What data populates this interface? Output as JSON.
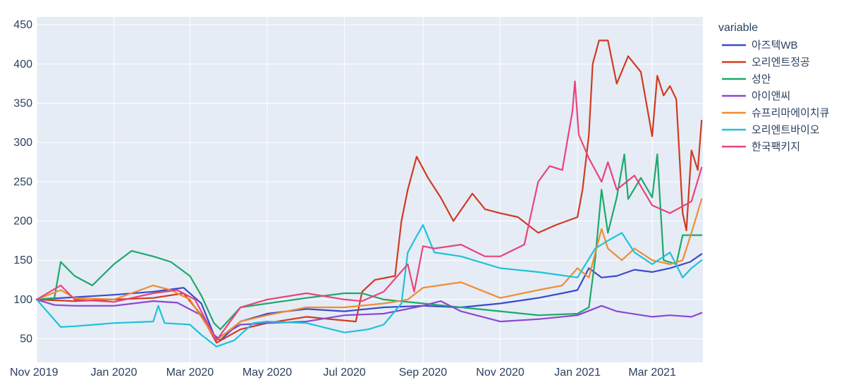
{
  "chart_data": {
    "type": "line",
    "title": "",
    "xlabel": "",
    "ylabel": "",
    "legend_title": "variable",
    "legend_position": "right",
    "grid": true,
    "background": "#e5ecf6",
    "x_ticks": [
      "Nov 2019",
      "Jan 2020",
      "Mar 2020",
      "May 2020",
      "Jul 2020",
      "Sep 2020",
      "Nov 2020",
      "Jan 2021",
      "Mar 2021"
    ],
    "x_range": [
      "2019-11-01",
      "2021-04-10"
    ],
    "y_ticks": [
      50,
      100,
      150,
      200,
      250,
      300,
      350,
      400,
      450
    ],
    "ylim": [
      20,
      460
    ],
    "series": [
      {
        "name": "아즈텍WB",
        "color": "#3b4bc8",
        "points": [
          [
            "2019-11-01",
            100
          ],
          [
            "2019-12-01",
            103
          ],
          [
            "2020-01-01",
            106
          ],
          [
            "2020-02-01",
            110
          ],
          [
            "2020-02-25",
            115
          ],
          [
            "2020-03-10",
            95
          ],
          [
            "2020-03-20",
            55
          ],
          [
            "2020-03-25",
            48
          ],
          [
            "2020-04-10",
            72
          ],
          [
            "2020-05-01",
            82
          ],
          [
            "2020-06-01",
            88
          ],
          [
            "2020-07-01",
            85
          ],
          [
            "2020-08-01",
            90
          ],
          [
            "2020-09-01",
            92
          ],
          [
            "2020-10-01",
            90
          ],
          [
            "2020-11-01",
            95
          ],
          [
            "2020-12-01",
            102
          ],
          [
            "2020-12-20",
            108
          ],
          [
            "2021-01-01",
            112
          ],
          [
            "2021-01-10",
            140
          ],
          [
            "2021-01-20",
            128
          ],
          [
            "2021-02-01",
            130
          ],
          [
            "2021-02-15",
            138
          ],
          [
            "2021-03-01",
            135
          ],
          [
            "2021-03-15",
            140
          ],
          [
            "2021-03-31",
            148
          ],
          [
            "2021-04-09",
            158
          ]
        ]
      },
      {
        "name": "오리엔트정공",
        "color": "#d03b1f",
        "points": [
          [
            "2019-11-01",
            100
          ],
          [
            "2019-12-01",
            98
          ],
          [
            "2020-01-01",
            100
          ],
          [
            "2020-02-01",
            102
          ],
          [
            "2020-02-25",
            108
          ],
          [
            "2020-03-10",
            80
          ],
          [
            "2020-03-22",
            45
          ],
          [
            "2020-04-10",
            62
          ],
          [
            "2020-05-01",
            70
          ],
          [
            "2020-06-01",
            78
          ],
          [
            "2020-06-20",
            75
          ],
          [
            "2020-07-10",
            72
          ],
          [
            "2020-07-15",
            110
          ],
          [
            "2020-07-25",
            125
          ],
          [
            "2020-08-10",
            130
          ],
          [
            "2020-08-15",
            200
          ],
          [
            "2020-08-20",
            240
          ],
          [
            "2020-08-27",
            282
          ],
          [
            "2020-09-05",
            255
          ],
          [
            "2020-09-15",
            230
          ],
          [
            "2020-09-25",
            200
          ],
          [
            "2020-10-10",
            235
          ],
          [
            "2020-10-20",
            215
          ],
          [
            "2020-11-01",
            210
          ],
          [
            "2020-11-15",
            205
          ],
          [
            "2020-12-01",
            185
          ],
          [
            "2020-12-15",
            195
          ],
          [
            "2021-01-01",
            205
          ],
          [
            "2021-01-05",
            240
          ],
          [
            "2021-01-10",
            310
          ],
          [
            "2021-01-13",
            400
          ],
          [
            "2021-01-18",
            430
          ],
          [
            "2021-01-25",
            430
          ],
          [
            "2021-02-01",
            375
          ],
          [
            "2021-02-10",
            410
          ],
          [
            "2021-02-20",
            390
          ],
          [
            "2021-03-01",
            308
          ],
          [
            "2021-03-05",
            385
          ],
          [
            "2021-03-10",
            360
          ],
          [
            "2021-03-15",
            372
          ],
          [
            "2021-03-20",
            355
          ],
          [
            "2021-03-25",
            210
          ],
          [
            "2021-03-28",
            188
          ],
          [
            "2021-04-01",
            290
          ],
          [
            "2021-04-06",
            265
          ],
          [
            "2021-04-09",
            328
          ]
        ]
      },
      {
        "name": "성안",
        "color": "#1ea86a",
        "points": [
          [
            "2019-11-01",
            100
          ],
          [
            "2019-11-15",
            102
          ],
          [
            "2019-11-20",
            148
          ],
          [
            "2019-12-01",
            130
          ],
          [
            "2019-12-15",
            118
          ],
          [
            "2020-01-01",
            145
          ],
          [
            "2020-01-15",
            162
          ],
          [
            "2020-02-01",
            155
          ],
          [
            "2020-02-15",
            148
          ],
          [
            "2020-03-01",
            130
          ],
          [
            "2020-03-10",
            105
          ],
          [
            "2020-03-20",
            70
          ],
          [
            "2020-03-25",
            62
          ],
          [
            "2020-04-10",
            90
          ],
          [
            "2020-05-01",
            95
          ],
          [
            "2020-06-01",
            102
          ],
          [
            "2020-07-01",
            108
          ],
          [
            "2020-07-15",
            108
          ],
          [
            "2020-08-01",
            100
          ],
          [
            "2020-09-01",
            95
          ],
          [
            "2020-10-01",
            90
          ],
          [
            "2020-11-01",
            85
          ],
          [
            "2020-12-01",
            80
          ],
          [
            "2021-01-01",
            82
          ],
          [
            "2021-01-10",
            90
          ],
          [
            "2021-01-15",
            152
          ],
          [
            "2021-01-20",
            240
          ],
          [
            "2021-01-25",
            185
          ],
          [
            "2021-02-01",
            230
          ],
          [
            "2021-02-07",
            285
          ],
          [
            "2021-02-10",
            228
          ],
          [
            "2021-02-20",
            255
          ],
          [
            "2021-03-01",
            230
          ],
          [
            "2021-03-05",
            285
          ],
          [
            "2021-03-10",
            150
          ],
          [
            "2021-03-20",
            145
          ],
          [
            "2021-03-25",
            182
          ],
          [
            "2021-04-09",
            182
          ]
        ]
      },
      {
        "name": "아이앤씨",
        "color": "#8f45d3",
        "points": [
          [
            "2019-11-01",
            100
          ],
          [
            "2019-11-15",
            93
          ],
          [
            "2019-12-01",
            92
          ],
          [
            "2020-01-01",
            92
          ],
          [
            "2020-02-01",
            98
          ],
          [
            "2020-02-20",
            96
          ],
          [
            "2020-03-10",
            80
          ],
          [
            "2020-03-22",
            50
          ],
          [
            "2020-04-10",
            68
          ],
          [
            "2020-05-01",
            70
          ],
          [
            "2020-06-01",
            72
          ],
          [
            "2020-07-01",
            80
          ],
          [
            "2020-08-01",
            82
          ],
          [
            "2020-09-01",
            92
          ],
          [
            "2020-09-15",
            98
          ],
          [
            "2020-10-01",
            85
          ],
          [
            "2020-11-01",
            72
          ],
          [
            "2020-12-01",
            75
          ],
          [
            "2021-01-01",
            80
          ],
          [
            "2021-01-20",
            92
          ],
          [
            "2021-02-01",
            85
          ],
          [
            "2021-03-01",
            78
          ],
          [
            "2021-03-15",
            80
          ],
          [
            "2021-04-01",
            78
          ],
          [
            "2021-04-09",
            83
          ]
        ]
      },
      {
        "name": "슈프리마에이치큐",
        "color": "#f08c30",
        "points": [
          [
            "2019-11-01",
            100
          ],
          [
            "2019-11-20",
            112
          ],
          [
            "2019-12-01",
            102
          ],
          [
            "2020-01-01",
            100
          ],
          [
            "2020-02-01",
            118
          ],
          [
            "2020-02-15",
            112
          ],
          [
            "2020-03-01",
            100
          ],
          [
            "2020-03-22",
            48
          ],
          [
            "2020-04-10",
            72
          ],
          [
            "2020-05-01",
            80
          ],
          [
            "2020-06-01",
            90
          ],
          [
            "2020-07-01",
            90
          ],
          [
            "2020-08-01",
            95
          ],
          [
            "2020-08-20",
            100
          ],
          [
            "2020-09-01",
            115
          ],
          [
            "2020-10-01",
            122
          ],
          [
            "2020-11-01",
            102
          ],
          [
            "2020-12-01",
            112
          ],
          [
            "2020-12-20",
            118
          ],
          [
            "2021-01-01",
            140
          ],
          [
            "2021-01-10",
            128
          ],
          [
            "2021-01-20",
            190
          ],
          [
            "2021-01-25",
            165
          ],
          [
            "2021-02-05",
            150
          ],
          [
            "2021-02-15",
            165
          ],
          [
            "2021-03-01",
            150
          ],
          [
            "2021-03-15",
            145
          ],
          [
            "2021-03-25",
            150
          ],
          [
            "2021-04-01",
            185
          ],
          [
            "2021-04-09",
            228
          ]
        ]
      },
      {
        "name": "오리엔트바이오",
        "color": "#1fc2d8",
        "points": [
          [
            "2019-11-01",
            100
          ],
          [
            "2019-11-20",
            65
          ],
          [
            "2019-12-01",
            66
          ],
          [
            "2020-01-01",
            70
          ],
          [
            "2020-02-01",
            72
          ],
          [
            "2020-02-05",
            92
          ],
          [
            "2020-02-10",
            70
          ],
          [
            "2020-03-01",
            68
          ],
          [
            "2020-03-10",
            55
          ],
          [
            "2020-03-22",
            40
          ],
          [
            "2020-04-05",
            48
          ],
          [
            "2020-04-20",
            70
          ],
          [
            "2020-05-01",
            72
          ],
          [
            "2020-06-01",
            70
          ],
          [
            "2020-07-01",
            58
          ],
          [
            "2020-07-20",
            62
          ],
          [
            "2020-08-01",
            68
          ],
          [
            "2020-08-15",
            95
          ],
          [
            "2020-08-20",
            160
          ],
          [
            "2020-08-25",
            175
          ],
          [
            "2020-09-01",
            195
          ],
          [
            "2020-09-10",
            160
          ],
          [
            "2020-10-01",
            155
          ],
          [
            "2020-11-01",
            140
          ],
          [
            "2020-12-01",
            135
          ],
          [
            "2021-01-01",
            128
          ],
          [
            "2021-01-15",
            165
          ],
          [
            "2021-01-25",
            175
          ],
          [
            "2021-02-05",
            185
          ],
          [
            "2021-02-15",
            160
          ],
          [
            "2021-03-01",
            145
          ],
          [
            "2021-03-15",
            160
          ],
          [
            "2021-03-25",
            128
          ],
          [
            "2021-04-01",
            140
          ],
          [
            "2021-04-09",
            150
          ]
        ]
      },
      {
        "name": "한국팩키지",
        "color": "#e8447a",
        "points": [
          [
            "2019-11-01",
            100
          ],
          [
            "2019-11-20",
            118
          ],
          [
            "2019-12-01",
            100
          ],
          [
            "2020-01-01",
            97
          ],
          [
            "2020-02-01",
            108
          ],
          [
            "2020-02-20",
            112
          ],
          [
            "2020-03-05",
            100
          ],
          [
            "2020-03-22",
            48
          ],
          [
            "2020-04-10",
            90
          ],
          [
            "2020-05-01",
            100
          ],
          [
            "2020-06-01",
            108
          ],
          [
            "2020-07-01",
            100
          ],
          [
            "2020-07-15",
            98
          ],
          [
            "2020-08-01",
            110
          ],
          [
            "2020-08-20",
            145
          ],
          [
            "2020-08-25",
            110
          ],
          [
            "2020-09-01",
            168
          ],
          [
            "2020-09-10",
            165
          ],
          [
            "2020-10-01",
            170
          ],
          [
            "2020-10-20",
            155
          ],
          [
            "2020-11-01",
            155
          ],
          [
            "2020-11-20",
            170
          ],
          [
            "2020-12-01",
            250
          ],
          [
            "2020-12-10",
            270
          ],
          [
            "2020-12-20",
            265
          ],
          [
            "2020-12-28",
            340
          ],
          [
            "2020-12-30",
            378
          ],
          [
            "2021-01-02",
            310
          ],
          [
            "2021-01-10",
            280
          ],
          [
            "2021-01-20",
            250
          ],
          [
            "2021-01-25",
            275
          ],
          [
            "2021-02-01",
            240
          ],
          [
            "2021-02-15",
            258
          ],
          [
            "2021-03-01",
            220
          ],
          [
            "2021-03-15",
            210
          ],
          [
            "2021-04-01",
            225
          ],
          [
            "2021-04-09",
            268
          ]
        ]
      }
    ]
  }
}
